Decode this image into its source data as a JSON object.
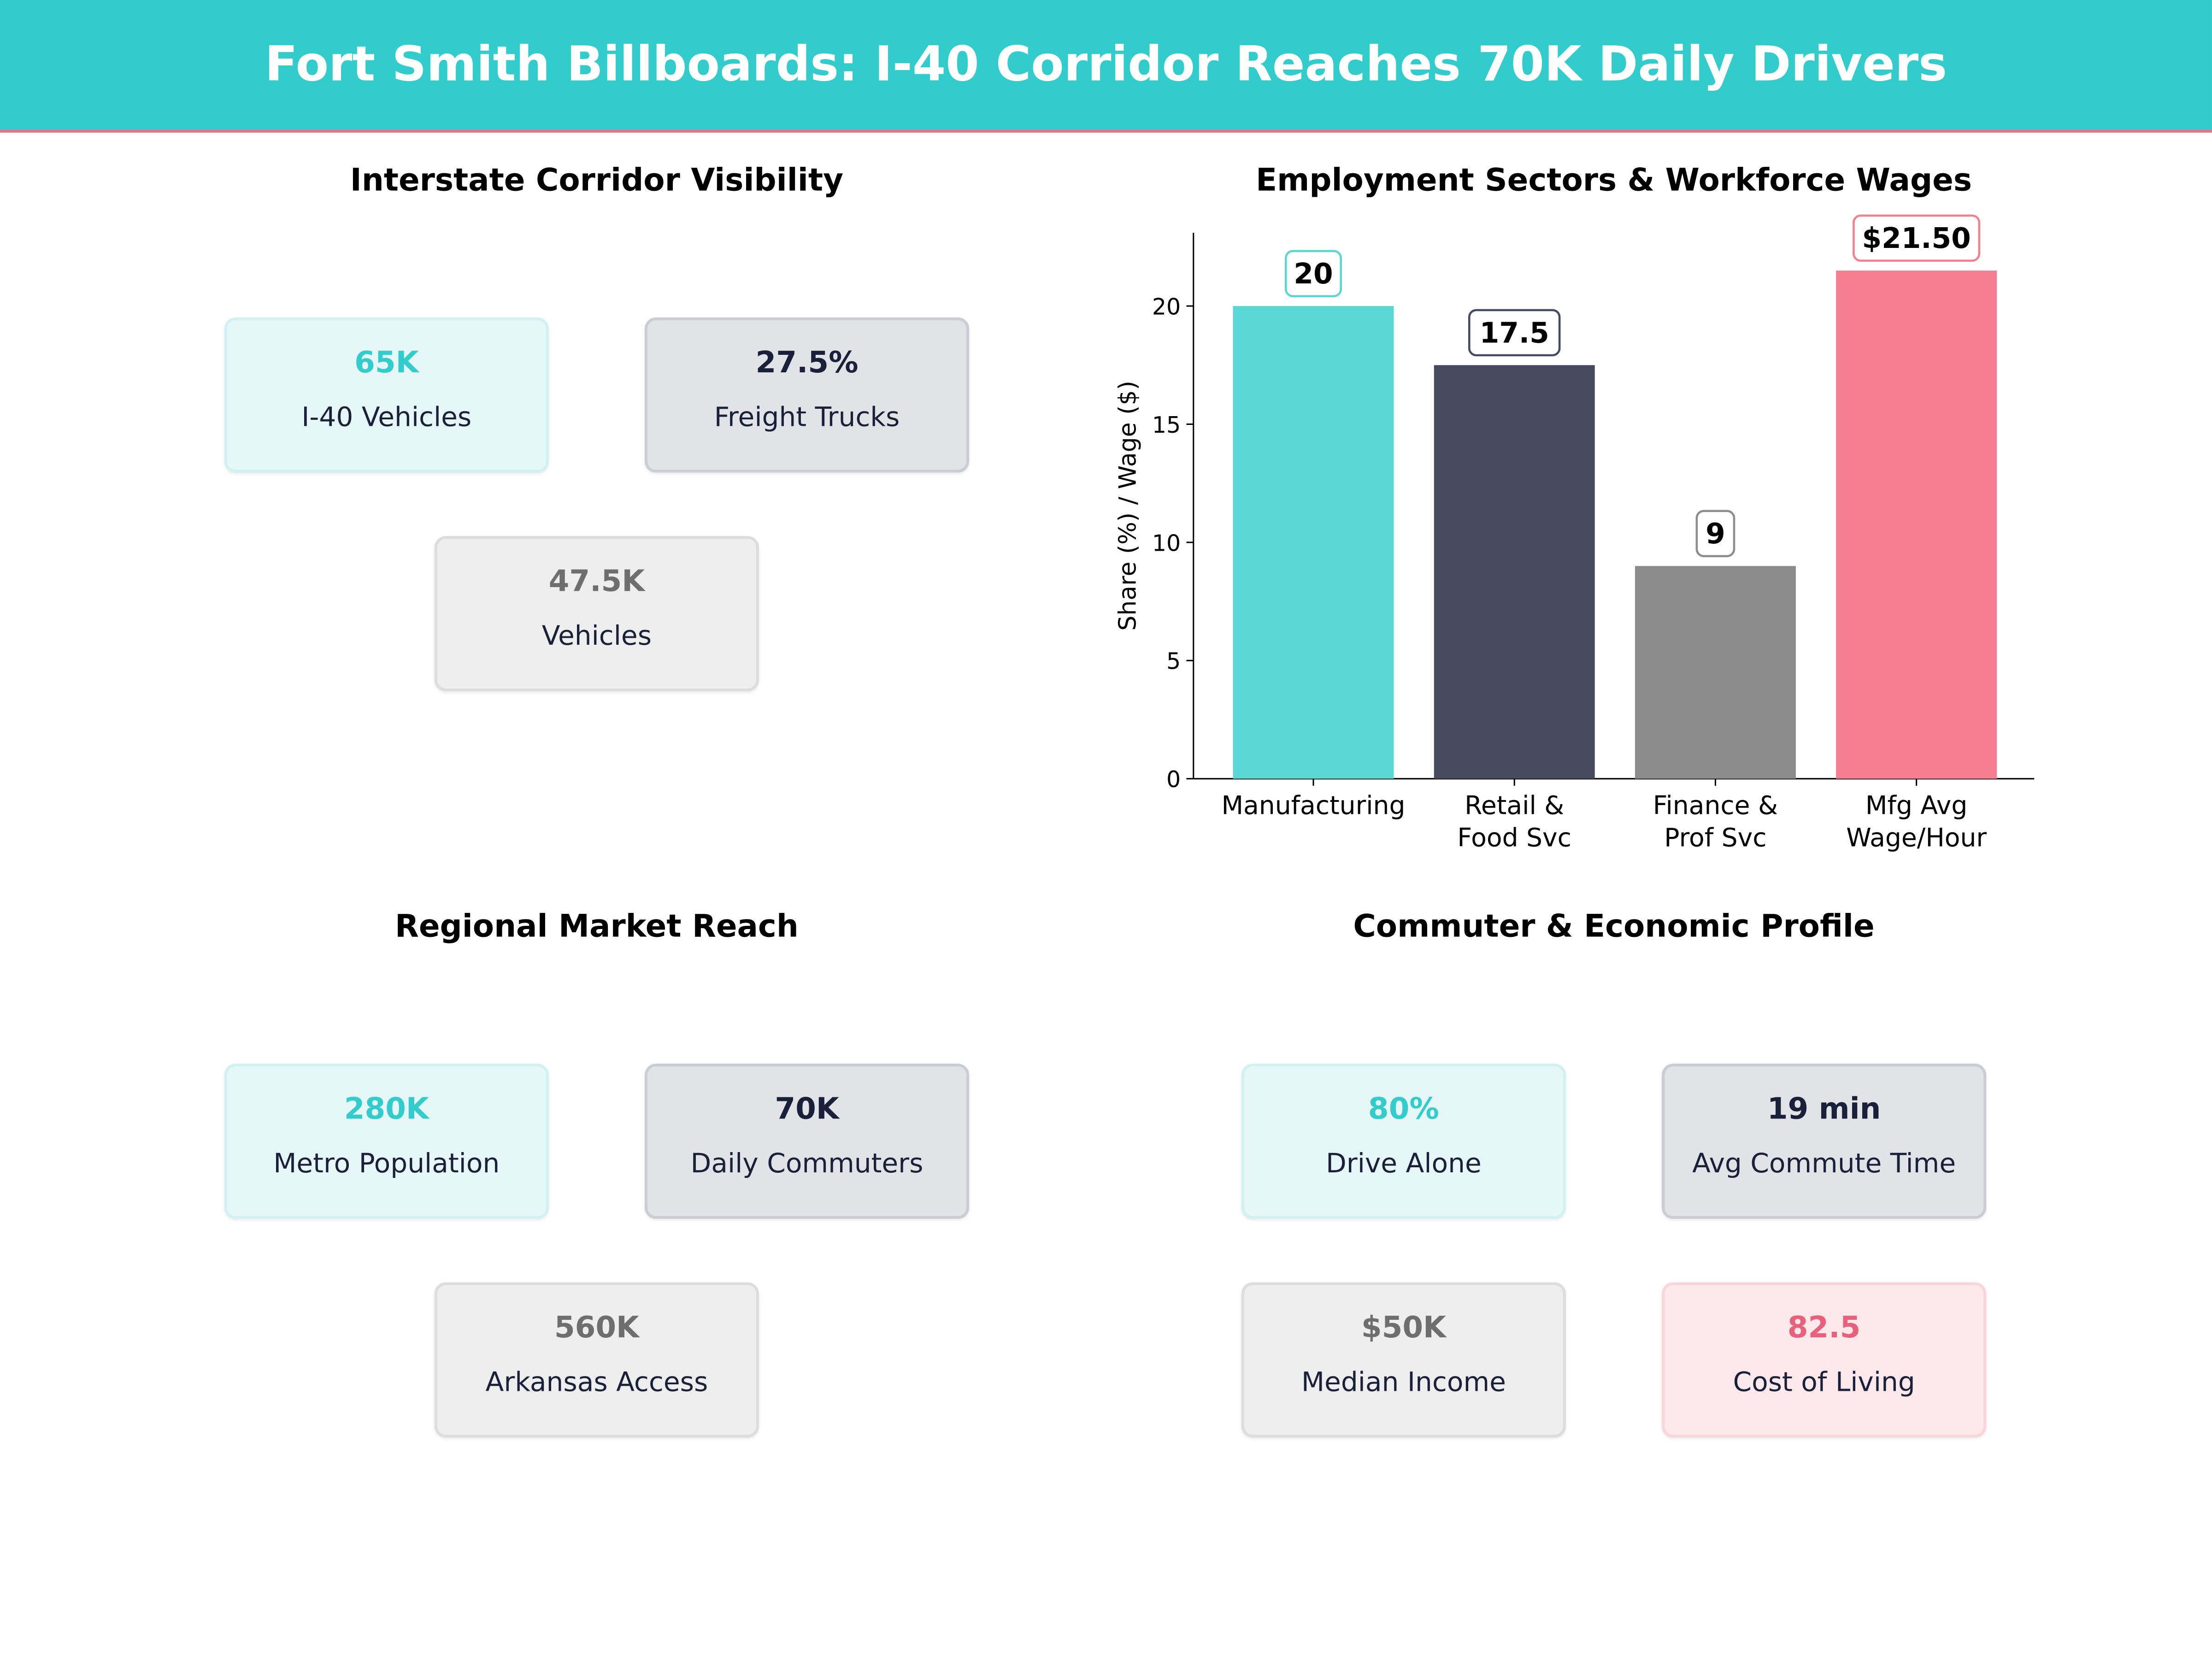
{
  "title": "Fort Smith Billboards: I-40 Corridor Reaches 70K Daily Drivers",
  "panels": {
    "corridor": {
      "title": "Interstate Corridor Visibility",
      "cards": [
        {
          "value": "65K",
          "label": "I-40  Vehicles",
          "style": "teal"
        },
        {
          "value": "27.5%",
          "label": "Freight Trucks",
          "style": "navy"
        },
        {
          "value": "47.5K",
          "label": "Vehicles",
          "style": "grey"
        }
      ]
    },
    "market": {
      "title": "Regional Market Reach",
      "cards": [
        {
          "value": "280K",
          "label": "Metro Population",
          "style": "teal"
        },
        {
          "value": "70K",
          "label": "Daily Commuters",
          "style": "navy"
        },
        {
          "value": "560K",
          "label": "Arkansas Access",
          "style": "grey"
        }
      ]
    },
    "commuter": {
      "title": "Commuter & Economic Profile",
      "cards": [
        {
          "value": "80%",
          "label": "Drive Alone",
          "style": "teal"
        },
        {
          "value": "19 min",
          "label": "Avg Commute Time",
          "style": "navy"
        },
        {
          "value": "$50K",
          "label": "Median Income",
          "style": "grey"
        },
        {
          "value": "82.5",
          "label": "Cost of Living",
          "style": "pink"
        }
      ]
    }
  },
  "chart_data": {
    "type": "bar",
    "title": "Employment Sectors & Workforce Wages",
    "ylabel": "Share (%) / Wage ($)",
    "xlabel": "",
    "categories": [
      [
        "Manufacturing"
      ],
      [
        "Retail &",
        "Food Svc"
      ],
      [
        "Finance &",
        "Prof Svc"
      ],
      [
        "Mfg Avg",
        "Wage/Hour"
      ]
    ],
    "values": [
      20,
      17.5,
      9,
      21.5
    ],
    "data_labels": [
      "20",
      "17.5",
      "9",
      "$21.50"
    ],
    "colors": [
      "#5cd6d4",
      "#454a5f",
      "#8c8c8c",
      "#f57e91"
    ],
    "label_border_colors": [
      "#5cd6d4",
      "#454a5f",
      "#8c8c8c",
      "#f57e91"
    ],
    "yticks": [
      0,
      5,
      10,
      15,
      20
    ],
    "ylim": [
      0,
      23.1
    ],
    "grid": false
  },
  "colors": {
    "header": "#33cccc",
    "accent_line": "#f07080"
  }
}
